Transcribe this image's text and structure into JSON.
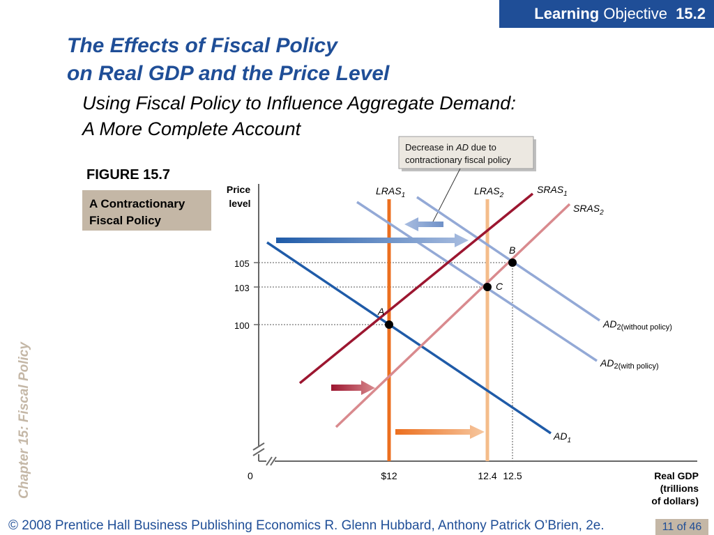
{
  "header": {
    "objective_word1": "Learning",
    "objective_word2": "Objective",
    "objective_number": "15.2"
  },
  "title": {
    "line1": "The Effects of Fiscal Policy",
    "line2": "on Real GDP and the Price Level"
  },
  "subtitle": {
    "line1": "Using Fiscal Policy to Influence Aggregate Demand:",
    "line2": "A More Complete Account"
  },
  "figure": {
    "label": "FIGURE 15.7",
    "caption_line1": "A Contractionary",
    "caption_line2": "Fiscal Policy"
  },
  "sidebar": {
    "text": "Chapter 15:  Fiscal Policy"
  },
  "footer": {
    "text": "© 2008 Prentice Hall Business Publishing   Economics  R. Glenn Hubbard, Anthony Patrick O’Brien, 2e.",
    "page": "11 of 46"
  },
  "colors": {
    "brand_blue": "#1f4e97",
    "tan": "#c4b7a6",
    "ad1": "#1f5ba8",
    "ad2": "#93a9d6",
    "sras1": "#9c1630",
    "sras2": "#d98a8e",
    "lras1": "#ec6f1f",
    "lras2": "#f4bc8a"
  },
  "chart_data": {
    "type": "line",
    "ylabel_line1": "Price",
    "ylabel_line2": "level",
    "xlabel_line1": "Real GDP",
    "xlabel_line2": "(trillions",
    "xlabel_line3": "of dollars)",
    "origin_label": "0",
    "y_ticks": [
      "105",
      "103",
      "100"
    ],
    "x_ticks": [
      "$12",
      "12.4",
      "12.5"
    ],
    "callout_line1_pre": "Decrease in ",
    "callout_line1_em": "AD",
    "callout_line1_post": " due to",
    "callout_line2": "contractionary fiscal policy",
    "curve_labels": {
      "lras1": "LRAS",
      "lras1_sub": "1",
      "lras2": "LRAS",
      "lras2_sub": "2",
      "sras1": "SRAS",
      "sras1_sub": "1",
      "sras2": "SRAS",
      "sras2_sub": "2",
      "ad1": "AD",
      "ad1_sub": "1",
      "ad2_wo": "AD",
      "ad2_wo_sub": "2(without policy)",
      "ad2_w": "AD",
      "ad2_w_sub": "2(with policy)"
    },
    "points": [
      {
        "label": "A",
        "x": 12,
        "y": 100
      },
      {
        "label": "B",
        "x": 12.5,
        "y": 105
      },
      {
        "label": "C",
        "x": 12.4,
        "y": 103
      }
    ]
  }
}
